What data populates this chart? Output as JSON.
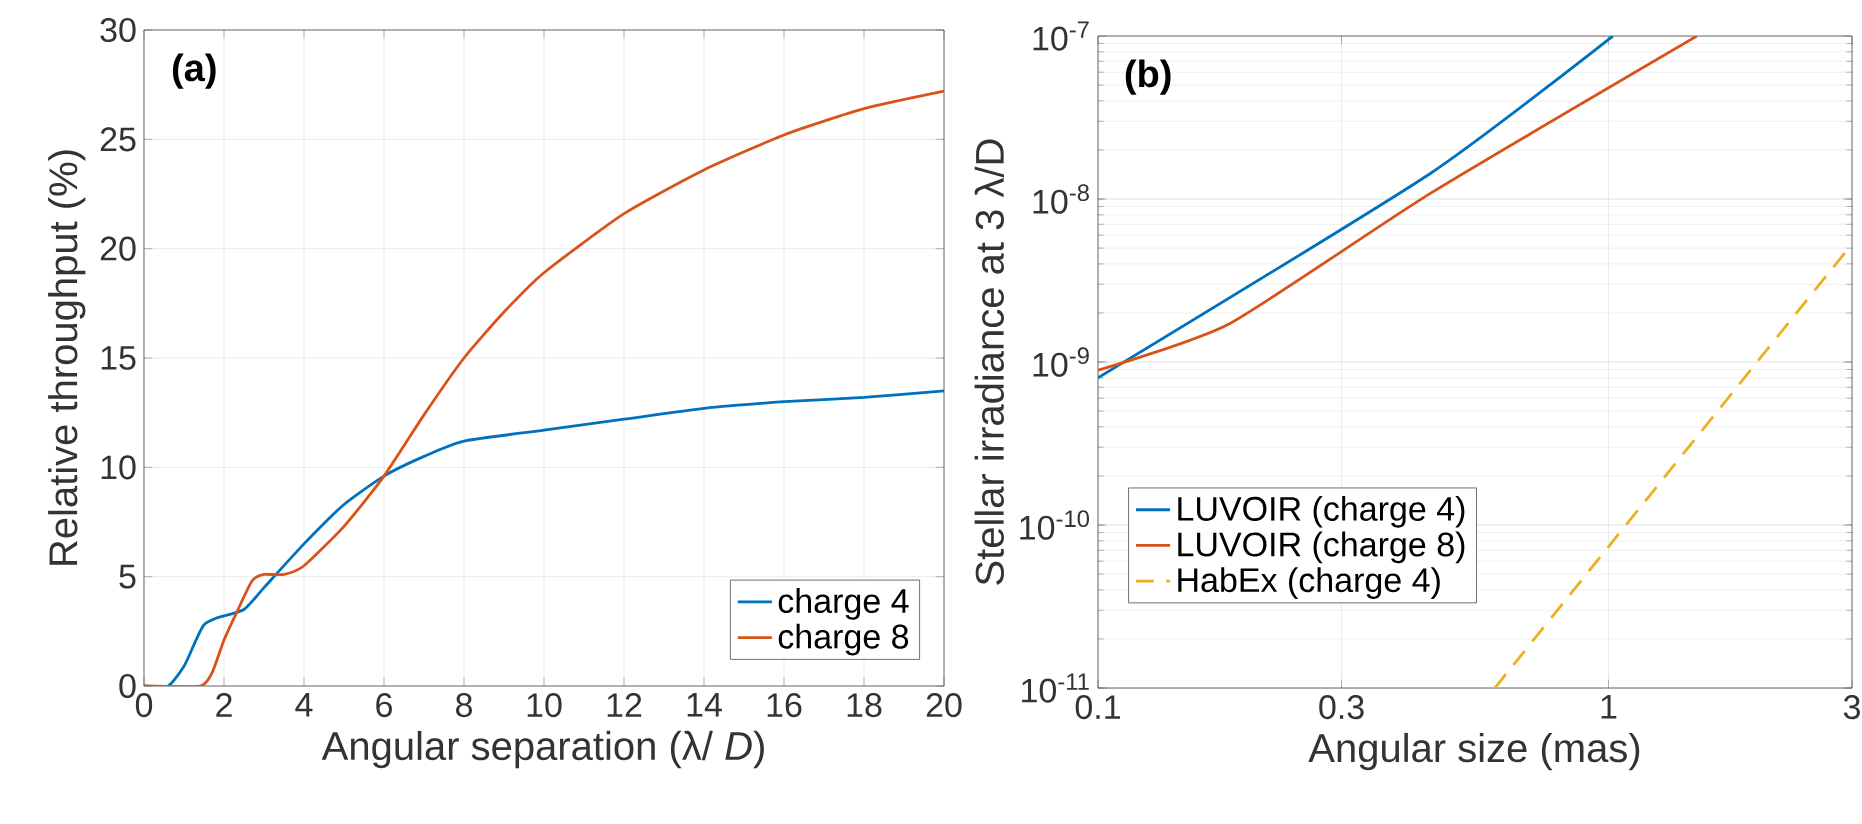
{
  "chart_data": [
    {
      "type": "line",
      "xlabel": "Angular separation (λ/ *D*)",
      "ylabel": "Relative throughput (%)",
      "annotations": [
        "(a)"
      ],
      "xlim": [
        0,
        20
      ],
      "ylim": [
        0,
        30
      ],
      "xticks": [
        0,
        2,
        4,
        6,
        8,
        10,
        12,
        14,
        16,
        18,
        20
      ],
      "yticks": [
        0,
        5,
        10,
        15,
        20,
        25,
        30
      ],
      "grid": true,
      "legend": "bottom right",
      "series": [
        {
          "name": "charge 4",
          "color": "#0072bd",
          "x": [
            0,
            0.6,
            1,
            1.3,
            1.5,
            1.8,
            2.5,
            3,
            4,
            5,
            6,
            7,
            8,
            10,
            12,
            14,
            16,
            18,
            20
          ],
          "values": [
            0,
            0,
            0.9,
            2.1,
            2.8,
            3.1,
            3.5,
            4.5,
            6.5,
            8.3,
            9.6,
            10.5,
            11.2,
            11.7,
            12.2,
            12.7,
            13.0,
            13.2,
            13.5
          ]
        },
        {
          "name": "charge 8",
          "color": "#d95319",
          "x": [
            0,
            1.4,
            1.7,
            2,
            2.3,
            2.7,
            3,
            3.5,
            4,
            5,
            6,
            7,
            8,
            9,
            10,
            12,
            14,
            16,
            18,
            20
          ],
          "values": [
            0,
            0,
            0.6,
            2.1,
            3.3,
            4.8,
            5.1,
            5.1,
            5.5,
            7.3,
            9.6,
            12.4,
            15.0,
            17.1,
            18.9,
            21.6,
            23.6,
            25.2,
            26.4,
            27.2
          ]
        }
      ]
    },
    {
      "type": "line",
      "xlabel": "Angular size (mas)",
      "ylabel": "Stellar irradiance at 3 λ/D",
      "annotations": [
        "(b)"
      ],
      "log": "xy",
      "xlim": [
        0.1,
        3
      ],
      "ylim": [
        1e-11,
        1e-07
      ],
      "xticks": [
        0.1,
        0.3,
        1,
        3
      ],
      "yticks": [
        {
          "value": 1e-11,
          "label": "10$^{-11}$"
        },
        {
          "value": 1e-10,
          "label": "10$^{-10}$"
        },
        {
          "value": 1e-09,
          "label": "10$^{-9}$"
        },
        {
          "value": 1e-08,
          "label": "10$^{-8}$"
        },
        {
          "value": 1e-07,
          "label": "10$^{-7}$"
        }
      ],
      "grid": true,
      "legend": "bottom left",
      "series": [
        {
          "name": "LUVOIR (charge 4)",
          "color": "#0072bd",
          "x": [
            0.1,
            0.447,
            1.02
          ],
          "values": [
            8e-10,
            1.43e-08,
            1e-07
          ]
        },
        {
          "name": "LUVOIR (charge 8)",
          "color": "#d95319",
          "x": [
            0.1,
            0.181,
            0.447,
            1.49
          ],
          "values": [
            8.9e-10,
            1.72e-09,
            1.08e-08,
            1e-07
          ]
        },
        {
          "name": "HabEx (charge 4)",
          "color": "#edb120",
          "line_style": "dashed",
          "x": [
            0.599,
            3
          ],
          "values": [
            1e-11,
            5.3e-09
          ]
        }
      ]
    }
  ]
}
